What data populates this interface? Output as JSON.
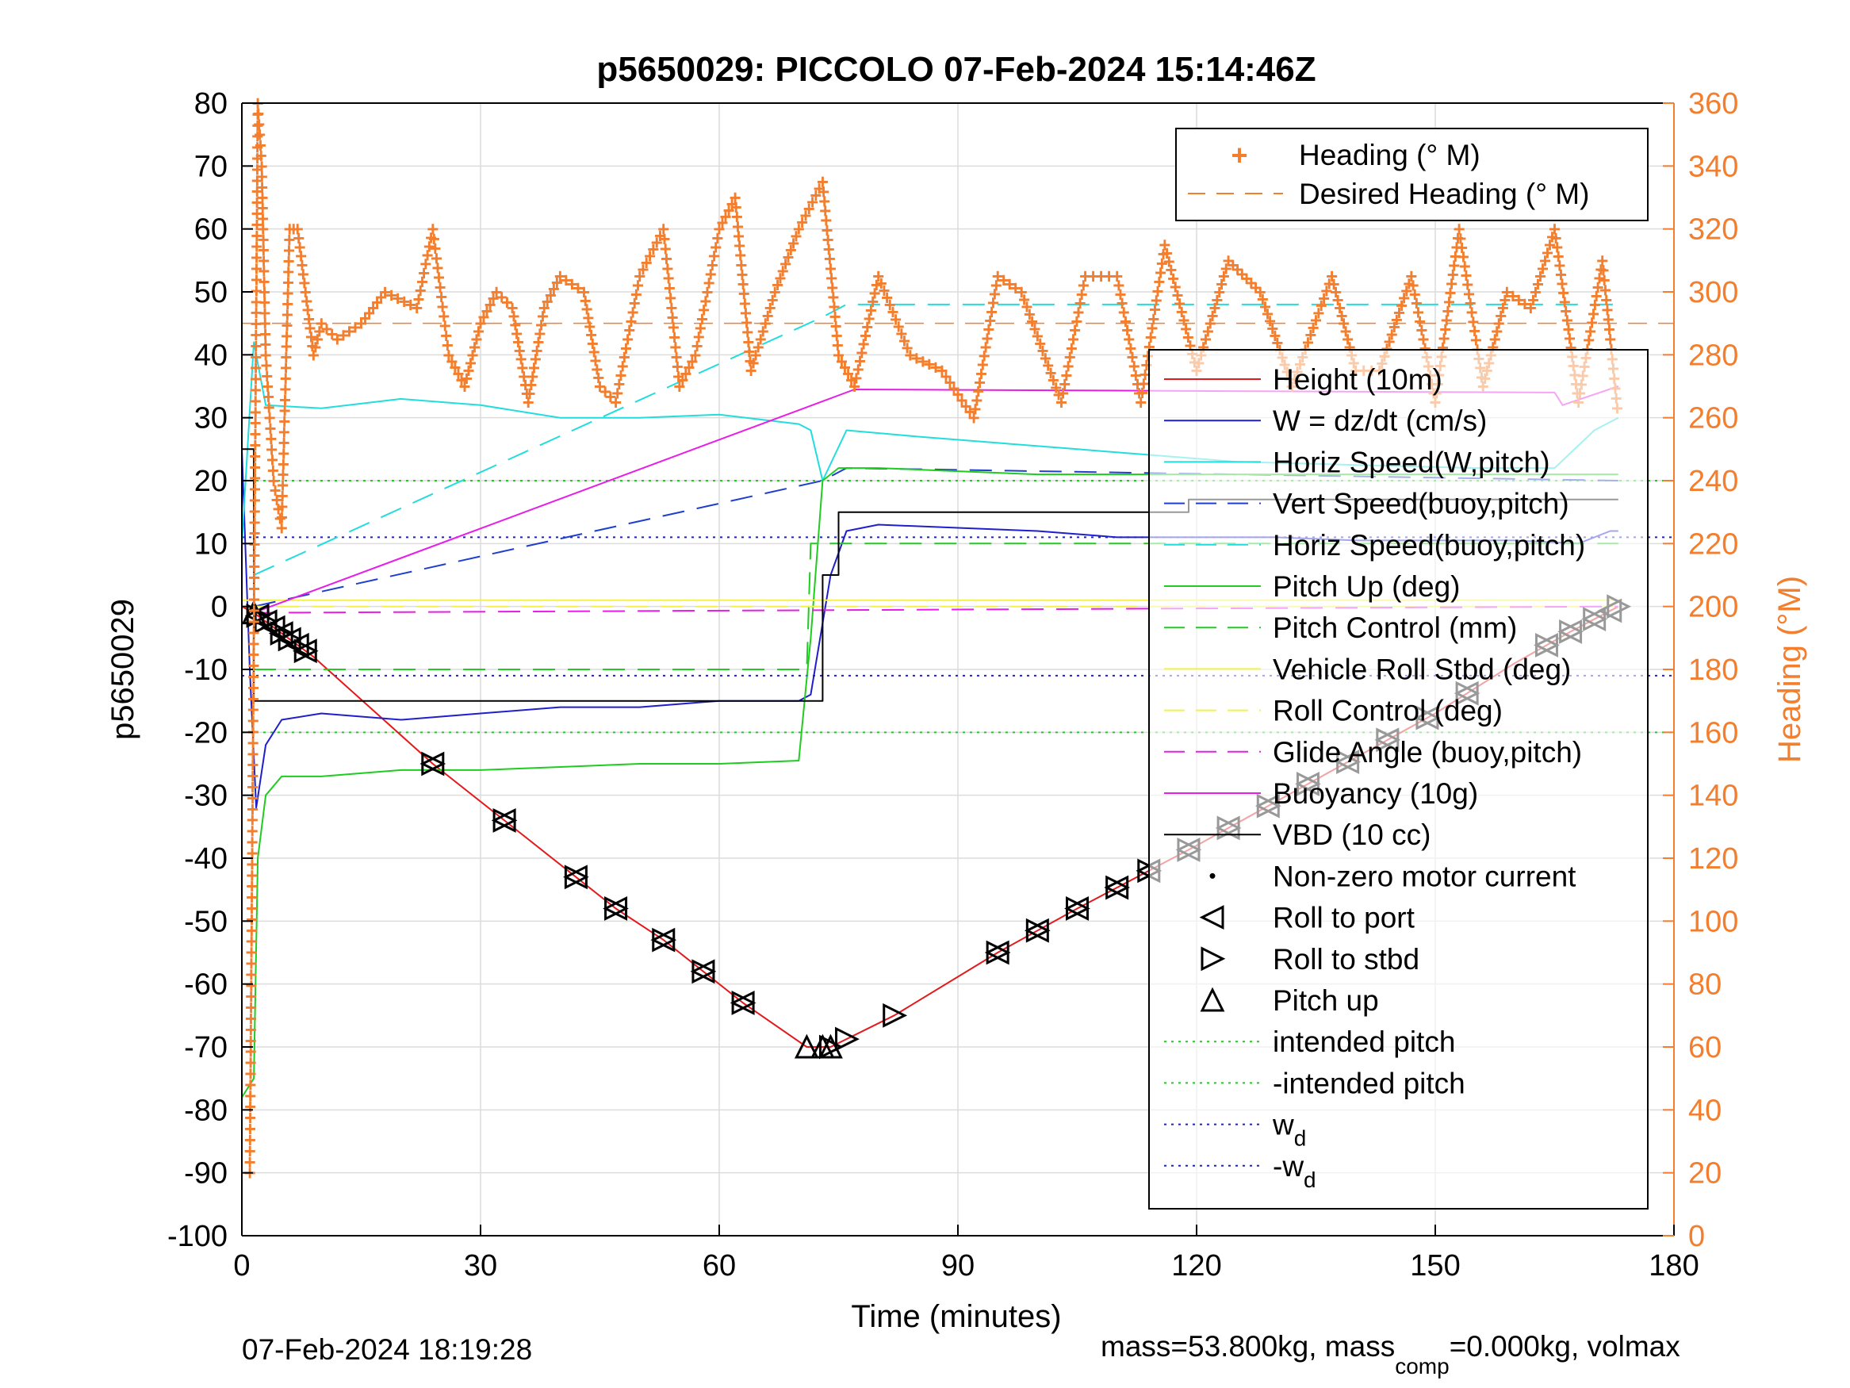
{
  "chart_data": {
    "type": "line",
    "title": "p5650029: PICCOLO 07-Feb-2024 15:14:46Z",
    "xlabel": "Time (minutes)",
    "ylabel": "p5650029",
    "ylabel_right": "Heading (°M)",
    "xlim": [
      0,
      180
    ],
    "ylim": [
      -100,
      80
    ],
    "ylim_right": [
      0,
      360
    ],
    "xticks": [
      "0",
      "30",
      "60",
      "90",
      "120",
      "150",
      "180"
    ],
    "yticks": [
      "80",
      "70",
      "60",
      "50",
      "40",
      "30",
      "20",
      "10",
      "0",
      "-10",
      "-20",
      "-30",
      "-40",
      "-50",
      "-60",
      "-70",
      "-80",
      "-90",
      "-100"
    ],
    "yticks_right": [
      "360",
      "340",
      "320",
      "300",
      "280",
      "260",
      "240",
      "220",
      "200",
      "180",
      "160",
      "140",
      "120",
      "100",
      "80",
      "60",
      "40",
      "20",
      "0"
    ],
    "grid": true,
    "legend_top": {
      "placement": "top-right",
      "entries": [
        "Heading (° M)",
        "Desired Heading (° M)"
      ]
    },
    "legend_main": {
      "placement": "right",
      "entries": [
        "Height (10m)",
        "W = dz/dt (cm/s)",
        "Horiz Speed(W,pitch)",
        "Vert Speed(buoy,pitch)",
        "Horiz Speed(buoy,pitch)",
        "Pitch Up (deg)",
        "Pitch Control (mm)",
        "Vehicle Roll Stbd (deg)",
        "Roll Control (deg)",
        "Glide Angle (buoy,pitch)",
        "Buoyancy (10g)",
        "VBD (10 cc)",
        "Non-zero motor current",
        "Roll to port",
        "Roll to stbd",
        "Pitch up",
        "intended pitch",
        "-intended pitch",
        "w",
        "-w"
      ],
      "subscripts": {
        "w": "d",
        "-w": "d"
      }
    },
    "colors": {
      "heading": "#f27e2e",
      "height": "#e31a1c",
      "w": "#1f1fcc",
      "horiz_speed_w": "#22dddd",
      "vert_speed_buoy": "#1f3fcc",
      "horiz_speed_buoy": "#22dddd",
      "pitch": "#1fcc1f",
      "pitch_control": "#1fcc1f",
      "roll": "#f2f24a",
      "buoyancy": "#e61ee6",
      "vbd": "#000000",
      "intended_pitch": "#1fcc1f",
      "wd": "#1f1fcc"
    },
    "constants": {
      "intended_pitch": 20,
      "neg_intended_pitch": -20,
      "wd": 11,
      "neg_wd": -11,
      "desired_heading": 290
    },
    "series": [
      {
        "name": "Height (10m)",
        "x": [
          0,
          1.5,
          9,
          24,
          33,
          42,
          47,
          53,
          58,
          63,
          71,
          74,
          82,
          95,
          105,
          114,
          120,
          130,
          140,
          150,
          160,
          167,
          173
        ],
        "y": [
          0,
          -1,
          -8,
          -25,
          -34,
          -43,
          -48,
          -53,
          -58,
          -63,
          -70,
          -70,
          -65,
          -55,
          -48,
          -42,
          -38,
          -31,
          -24,
          -17,
          -9,
          -4,
          0
        ]
      },
      {
        "name": "W = dz/dt (cm/s)",
        "x": [
          0,
          1,
          1.8,
          3,
          5,
          10,
          20,
          30,
          40,
          50,
          60,
          70,
          71.5,
          74,
          76,
          80,
          90,
          100,
          110,
          120,
          130,
          140,
          150,
          160,
          168,
          172,
          173
        ],
        "y": [
          25,
          -10,
          -32,
          -22,
          -18,
          -17,
          -18,
          -17,
          -16,
          -16,
          -15,
          -15,
          -14,
          5,
          12,
          13,
          12.5,
          12,
          11,
          11,
          11,
          10.5,
          10.5,
          10.5,
          10,
          12,
          12
        ]
      },
      {
        "name": "Horiz Speed(W,pitch)",
        "x": [
          0,
          1.5,
          3,
          10,
          20,
          30,
          40,
          50,
          60,
          70,
          71.5,
          73,
          76,
          85,
          95,
          105,
          115,
          125,
          140,
          155,
          165,
          170,
          173
        ],
        "y": [
          10,
          42,
          32,
          31.5,
          33,
          32,
          30,
          30,
          30.5,
          29,
          28,
          20,
          28,
          27,
          26,
          25,
          24,
          23,
          22.5,
          22,
          22,
          28,
          30
        ]
      },
      {
        "name": "Vert Speed(buoy,pitch)",
        "x": [
          1.5,
          73,
          76,
          173
        ],
        "y": [
          0,
          20,
          22,
          20
        ]
      },
      {
        "name": "Horiz Speed(buoy,pitch)",
        "x": [
          1.5,
          73,
          76,
          173
        ],
        "y": [
          5,
          46,
          48,
          48
        ]
      },
      {
        "name": "Pitch Up (deg)",
        "x": [
          0,
          1.5,
          2,
          3,
          5,
          10,
          20,
          30,
          40,
          50,
          60,
          70,
          71.5,
          73,
          75,
          80,
          90,
          100,
          110,
          120,
          130,
          140,
          150,
          160,
          170,
          173
        ],
        "y": [
          -78,
          -75,
          -40,
          -30,
          -27,
          -27,
          -26,
          -26,
          -25.5,
          -25,
          -25,
          -24.5,
          -5,
          20,
          22,
          22,
          21.5,
          21,
          21,
          21,
          21,
          21,
          21,
          21,
          21,
          21
        ]
      },
      {
        "name": "Pitch Control (mm)",
        "x": [
          1.5,
          71,
          71.5,
          173
        ],
        "y": [
          -10,
          -10,
          10,
          10
        ]
      },
      {
        "name": "Vehicle Roll Stbd (deg)",
        "x": [
          0,
          173
        ],
        "y": [
          1,
          1
        ]
      },
      {
        "name": "Roll Control (deg)",
        "x": [
          0,
          173
        ],
        "y": [
          0,
          0
        ]
      },
      {
        "name": "Glide Angle (buoy,pitch)",
        "x": [
          1.5,
          173
        ],
        "y": [
          -1,
          0
        ]
      },
      {
        "name": "Buoyancy (10g)",
        "x": [
          1.5,
          77,
          165,
          166,
          173
        ],
        "y": [
          -1,
          34.5,
          34,
          32,
          35
        ]
      },
      {
        "name": "VBD (10 cc)",
        "x": [
          0,
          1.5,
          71.5,
          73,
          75,
          114,
          119,
          173
        ],
        "y": [
          25,
          -15,
          -15,
          5,
          15,
          15,
          17,
          17
        ]
      },
      {
        "name": "Heading (° M)",
        "x": [
          1,
          2,
          2.5,
          3,
          4,
          5,
          6,
          7,
          8,
          9,
          10,
          12,
          15,
          18,
          22,
          24,
          26,
          28,
          30,
          32,
          34,
          36,
          38,
          40,
          43,
          45,
          47,
          50,
          53,
          55,
          57,
          60,
          62,
          64,
          67,
          70,
          73,
          75,
          77,
          80,
          84,
          88,
          92,
          95,
          98,
          103,
          106,
          110,
          113,
          116,
          120,
          124,
          128,
          132,
          137,
          140,
          143,
          147,
          150,
          153,
          156,
          159,
          162,
          165,
          168,
          171,
          173
        ],
        "y": [
          20,
          360,
          340,
          280,
          240,
          225,
          320,
          320,
          300,
          280,
          290,
          285,
          290,
          300,
          295,
          320,
          280,
          270,
          290,
          300,
          295,
          265,
          295,
          305,
          300,
          270,
          265,
          305,
          320,
          270,
          280,
          320,
          330,
          275,
          300,
          320,
          335,
          280,
          270,
          305,
          280,
          275,
          260,
          305,
          300,
          265,
          305,
          305,
          265,
          315,
          275,
          310,
          300,
          270,
          305,
          275,
          275,
          305,
          265,
          320,
          270,
          300,
          295,
          320,
          265,
          310,
          260
        ]
      }
    ],
    "markers": {
      "roll_to_port_x": [
        2,
        3,
        4,
        5,
        6,
        7,
        8,
        24,
        33,
        42,
        47,
        53,
        58,
        63,
        95,
        100,
        105,
        110,
        114,
        119,
        124,
        129,
        134,
        139,
        144,
        149,
        154,
        164,
        167,
        170,
        172
      ],
      "roll_to_stbd_x": [
        2,
        3,
        5,
        6,
        8,
        24,
        33,
        42,
        47,
        53,
        58,
        63,
        74,
        76,
        82,
        95,
        100,
        105,
        110,
        114,
        119,
        124,
        129,
        134,
        139,
        144,
        149,
        154,
        164,
        167,
        170,
        173
      ],
      "pitch_up_x": [
        1.5,
        71,
        73,
        74
      ]
    }
  },
  "footer": {
    "timestamp": "07-Feb-2024 18:19:28",
    "mass_text": "mass=53.800kg, mass",
    "mass_sub": "comp",
    "mass_rest": "=0.000kg, volmax"
  }
}
